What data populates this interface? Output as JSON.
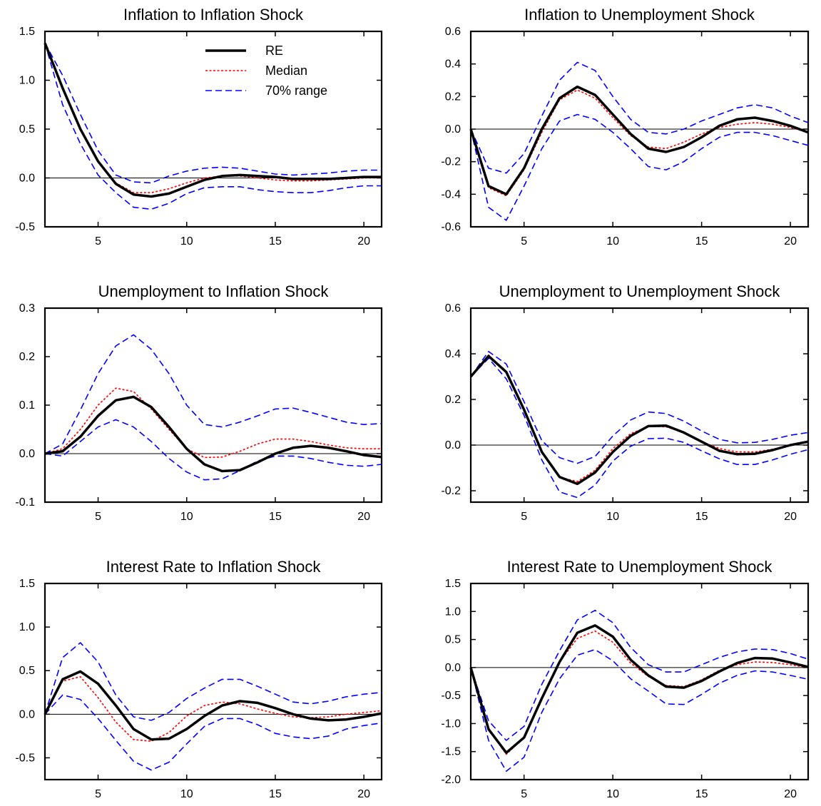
{
  "colors": {
    "re": "#000000",
    "median": "#ff0000",
    "range": "#0000ff"
  },
  "legend": [
    {
      "key": "re",
      "label": "RE"
    },
    {
      "key": "median",
      "label": "Median"
    },
    {
      "key": "range",
      "label": "70% range"
    }
  ],
  "chart_data": [
    {
      "type": "line",
      "title": "Inflation to Inflation Shock",
      "x": [
        2,
        3,
        4,
        5,
        6,
        7,
        8,
        9,
        10,
        11,
        12,
        13,
        14,
        15,
        16,
        17,
        18,
        19,
        20,
        21
      ],
      "xlim": [
        2,
        21
      ],
      "xticks": [
        5,
        10,
        15,
        20
      ],
      "ylim": [
        -0.5,
        1.5
      ],
      "yticks": [
        -0.5,
        0.0,
        0.5,
        1.0,
        1.5
      ],
      "zero_line": true,
      "legend": true,
      "series": [
        {
          "name": "70% range",
          "role": "upper",
          "values": [
            1.38,
            1.05,
            0.65,
            0.28,
            0.03,
            -0.04,
            -0.05,
            0.02,
            0.07,
            0.1,
            0.11,
            0.1,
            0.07,
            0.04,
            0.03,
            0.04,
            0.05,
            0.07,
            0.08,
            0.08
          ]
        },
        {
          "name": "70% range",
          "role": "lower",
          "values": [
            1.38,
            0.75,
            0.35,
            0.03,
            -0.15,
            -0.3,
            -0.32,
            -0.26,
            -0.16,
            -0.1,
            -0.09,
            -0.09,
            -0.12,
            -0.14,
            -0.15,
            -0.15,
            -0.13,
            -0.1,
            -0.08,
            -0.08
          ]
        },
        {
          "name": "Median",
          "role": "median",
          "values": [
            1.38,
            0.92,
            0.5,
            0.18,
            -0.05,
            -0.15,
            -0.15,
            -0.11,
            -0.05,
            0.0,
            0.02,
            0.02,
            0.0,
            -0.02,
            -0.03,
            -0.03,
            -0.02,
            -0.01,
            0.0,
            0.0
          ]
        },
        {
          "name": "RE",
          "role": "re",
          "values": [
            1.38,
            0.92,
            0.5,
            0.17,
            -0.06,
            -0.17,
            -0.19,
            -0.16,
            -0.09,
            -0.02,
            0.02,
            0.03,
            0.02,
            0.01,
            -0.01,
            -0.01,
            -0.01,
            0.0,
            0.01,
            0.01
          ]
        }
      ]
    },
    {
      "type": "line",
      "title": "Inflation to Unemployment Shock",
      "x": [
        2,
        3,
        4,
        5,
        6,
        7,
        8,
        9,
        10,
        11,
        12,
        13,
        14,
        15,
        16,
        17,
        18,
        19,
        20,
        21
      ],
      "xlim": [
        2,
        21
      ],
      "xticks": [
        5,
        10,
        15,
        20
      ],
      "ylim": [
        -0.6,
        0.6
      ],
      "yticks": [
        -0.6,
        -0.4,
        -0.2,
        0.0,
        0.2,
        0.4,
        0.6
      ],
      "zero_line": true,
      "legend": false,
      "series": [
        {
          "name": "70% range",
          "role": "upper",
          "values": [
            0.0,
            -0.24,
            -0.27,
            -0.15,
            0.08,
            0.3,
            0.41,
            0.36,
            0.2,
            0.06,
            -0.02,
            -0.03,
            0.0,
            0.05,
            0.09,
            0.13,
            0.15,
            0.13,
            0.08,
            0.04
          ]
        },
        {
          "name": "70% range",
          "role": "lower",
          "values": [
            0.0,
            -0.48,
            -0.56,
            -0.35,
            -0.12,
            0.05,
            0.09,
            0.06,
            -0.02,
            -0.12,
            -0.23,
            -0.25,
            -0.2,
            -0.12,
            -0.05,
            -0.02,
            -0.02,
            -0.04,
            -0.07,
            -0.1
          ]
        },
        {
          "name": "Median",
          "role": "median",
          "values": [
            0.0,
            -0.36,
            -0.41,
            -0.25,
            -0.02,
            0.18,
            0.24,
            0.19,
            0.07,
            -0.04,
            -0.11,
            -0.12,
            -0.08,
            -0.03,
            0.01,
            0.03,
            0.04,
            0.03,
            0.01,
            -0.02
          ]
        },
        {
          "name": "RE",
          "role": "re",
          "values": [
            0.0,
            -0.35,
            -0.4,
            -0.24,
            0.0,
            0.19,
            0.26,
            0.21,
            0.09,
            -0.03,
            -0.12,
            -0.14,
            -0.11,
            -0.05,
            0.02,
            0.06,
            0.07,
            0.05,
            0.02,
            -0.02
          ]
        }
      ]
    },
    {
      "type": "line",
      "title": "Unemployment to Inflation Shock",
      "x": [
        2,
        3,
        4,
        5,
        6,
        7,
        8,
        9,
        10,
        11,
        12,
        13,
        14,
        15,
        16,
        17,
        18,
        19,
        20,
        21
      ],
      "xlim": [
        2,
        21
      ],
      "xticks": [
        5,
        10,
        15,
        20
      ],
      "ylim": [
        -0.1,
        0.3
      ],
      "yticks": [
        -0.1,
        0.0,
        0.1,
        0.2,
        0.3
      ],
      "zero_line": true,
      "legend": false,
      "series": [
        {
          "name": "70% range",
          "role": "upper",
          "values": [
            0.0,
            0.02,
            0.09,
            0.165,
            0.222,
            0.245,
            0.215,
            0.165,
            0.1,
            0.06,
            0.055,
            0.065,
            0.078,
            0.092,
            0.094,
            0.085,
            0.075,
            0.065,
            0.06,
            0.062
          ]
        },
        {
          "name": "70% range",
          "role": "lower",
          "values": [
            0.0,
            -0.005,
            0.025,
            0.055,
            0.07,
            0.055,
            0.025,
            -0.01,
            -0.038,
            -0.054,
            -0.052,
            -0.035,
            -0.015,
            -0.005,
            -0.005,
            -0.01,
            -0.018,
            -0.024,
            -0.026,
            -0.022
          ]
        },
        {
          "name": "Median",
          "role": "median",
          "values": [
            0.0,
            0.01,
            0.05,
            0.1,
            0.135,
            0.128,
            0.092,
            0.05,
            0.01,
            -0.008,
            -0.007,
            0.005,
            0.02,
            0.03,
            0.03,
            0.025,
            0.018,
            0.012,
            0.01,
            0.01
          ]
        },
        {
          "name": "RE",
          "role": "re",
          "values": [
            0.0,
            0.005,
            0.035,
            0.078,
            0.11,
            0.117,
            0.096,
            0.055,
            0.01,
            -0.022,
            -0.036,
            -0.034,
            -0.018,
            0.0,
            0.012,
            0.016,
            0.012,
            0.005,
            -0.003,
            -0.007
          ]
        }
      ]
    },
    {
      "type": "line",
      "title": "Unemployment to Unemployment Shock",
      "x": [
        2,
        3,
        4,
        5,
        6,
        7,
        8,
        9,
        10,
        11,
        12,
        13,
        14,
        15,
        16,
        17,
        18,
        19,
        20,
        21
      ],
      "xlim": [
        2,
        21
      ],
      "xticks": [
        5,
        10,
        15,
        20
      ],
      "ylim": [
        -0.25,
        0.6
      ],
      "yticks": [
        -0.2,
        0.0,
        0.2,
        0.4,
        0.6
      ],
      "zero_line": true,
      "legend": false,
      "series": [
        {
          "name": "70% range",
          "role": "upper",
          "values": [
            0.3,
            0.41,
            0.355,
            0.19,
            0.02,
            -0.055,
            -0.08,
            -0.05,
            0.04,
            0.11,
            0.145,
            0.138,
            0.105,
            0.062,
            0.025,
            0.01,
            0.012,
            0.025,
            0.043,
            0.055
          ]
        },
        {
          "name": "70% range",
          "role": "lower",
          "values": [
            0.3,
            0.38,
            0.29,
            0.13,
            -0.065,
            -0.205,
            -0.23,
            -0.175,
            -0.07,
            -0.005,
            0.028,
            0.03,
            0.012,
            -0.025,
            -0.06,
            -0.085,
            -0.085,
            -0.065,
            -0.04,
            -0.02
          ]
        },
        {
          "name": "Median",
          "role": "median",
          "values": [
            0.3,
            0.395,
            0.32,
            0.16,
            -0.03,
            -0.14,
            -0.16,
            -0.11,
            -0.015,
            0.05,
            0.082,
            0.08,
            0.055,
            0.015,
            -0.015,
            -0.03,
            -0.03,
            -0.018,
            -0.002,
            0.012
          ]
        },
        {
          "name": "RE",
          "role": "re",
          "values": [
            0.3,
            0.39,
            0.32,
            0.155,
            -0.03,
            -0.14,
            -0.17,
            -0.12,
            -0.03,
            0.04,
            0.083,
            0.085,
            0.055,
            0.015,
            -0.025,
            -0.04,
            -0.038,
            -0.022,
            0.0,
            0.015
          ]
        }
      ]
    },
    {
      "type": "line",
      "title": "Interest Rate to Inflation Shock",
      "x": [
        2,
        3,
        4,
        5,
        6,
        7,
        8,
        9,
        10,
        11,
        12,
        13,
        14,
        15,
        16,
        17,
        18,
        19,
        20,
        21
      ],
      "xlim": [
        2,
        21
      ],
      "xticks": [
        5,
        10,
        15,
        20
      ],
      "ylim": [
        -0.75,
        1.5
      ],
      "yticks": [
        -0.5,
        0.0,
        0.5,
        1.0,
        1.5
      ],
      "zero_line": true,
      "legend": false,
      "series": [
        {
          "name": "70% range",
          "role": "upper",
          "values": [
            0.0,
            0.65,
            0.82,
            0.6,
            0.22,
            -0.03,
            -0.07,
            0.02,
            0.18,
            0.3,
            0.4,
            0.4,
            0.32,
            0.23,
            0.14,
            0.12,
            0.15,
            0.2,
            0.23,
            0.25
          ]
        },
        {
          "name": "70% range",
          "role": "lower",
          "values": [
            0.0,
            0.22,
            0.17,
            -0.05,
            -0.3,
            -0.54,
            -0.64,
            -0.55,
            -0.34,
            -0.14,
            -0.05,
            -0.05,
            -0.12,
            -0.22,
            -0.26,
            -0.28,
            -0.25,
            -0.17,
            -0.13,
            -0.1
          ]
        },
        {
          "name": "Median",
          "role": "median",
          "values": [
            0.0,
            0.38,
            0.43,
            0.19,
            -0.09,
            -0.29,
            -0.31,
            -0.21,
            -0.02,
            0.1,
            0.14,
            0.12,
            0.06,
            0.01,
            -0.03,
            -0.04,
            -0.03,
            0.0,
            0.02,
            0.04
          ]
        },
        {
          "name": "RE",
          "role": "re",
          "values": [
            0.0,
            0.4,
            0.49,
            0.35,
            0.1,
            -0.17,
            -0.29,
            -0.28,
            -0.17,
            -0.02,
            0.1,
            0.15,
            0.13,
            0.07,
            0.0,
            -0.05,
            -0.07,
            -0.06,
            -0.03,
            0.01
          ]
        }
      ]
    },
    {
      "type": "line",
      "title": "Interest Rate to Unemployment Shock",
      "x": [
        2,
        3,
        4,
        5,
        6,
        7,
        8,
        9,
        10,
        11,
        12,
        13,
        14,
        15,
        16,
        17,
        18,
        19,
        20,
        21
      ],
      "xlim": [
        2,
        21
      ],
      "xticks": [
        5,
        10,
        15,
        20
      ],
      "ylim": [
        -2.0,
        1.5
      ],
      "yticks": [
        -2.0,
        -1.5,
        -1.0,
        -0.5,
        0.0,
        0.5,
        1.0,
        1.5
      ],
      "zero_line": true,
      "legend": false,
      "series": [
        {
          "name": "70% range",
          "role": "upper",
          "values": [
            0.0,
            -0.95,
            -1.3,
            -1.05,
            -0.3,
            0.3,
            0.85,
            1.02,
            0.8,
            0.36,
            0.05,
            -0.08,
            -0.08,
            0.05,
            0.18,
            0.28,
            0.33,
            0.32,
            0.25,
            0.15
          ]
        },
        {
          "name": "70% range",
          "role": "lower",
          "values": [
            0.0,
            -1.3,
            -1.85,
            -1.6,
            -0.8,
            -0.2,
            0.22,
            0.32,
            0.12,
            -0.2,
            -0.42,
            -0.65,
            -0.66,
            -0.48,
            -0.28,
            -0.14,
            -0.06,
            -0.08,
            -0.14,
            -0.21
          ]
        },
        {
          "name": "Median",
          "role": "median",
          "values": [
            0.0,
            -1.1,
            -1.55,
            -1.25,
            -0.55,
            0.1,
            0.52,
            0.65,
            0.45,
            0.08,
            -0.16,
            -0.32,
            -0.34,
            -0.22,
            -0.05,
            0.05,
            0.1,
            0.09,
            0.05,
            0.0
          ]
        },
        {
          "name": "RE",
          "role": "re",
          "values": [
            0.0,
            -1.1,
            -1.52,
            -1.25,
            -0.55,
            0.1,
            0.62,
            0.75,
            0.55,
            0.14,
            -0.14,
            -0.34,
            -0.36,
            -0.24,
            -0.07,
            0.08,
            0.17,
            0.16,
            0.09,
            0.01
          ]
        }
      ]
    }
  ]
}
